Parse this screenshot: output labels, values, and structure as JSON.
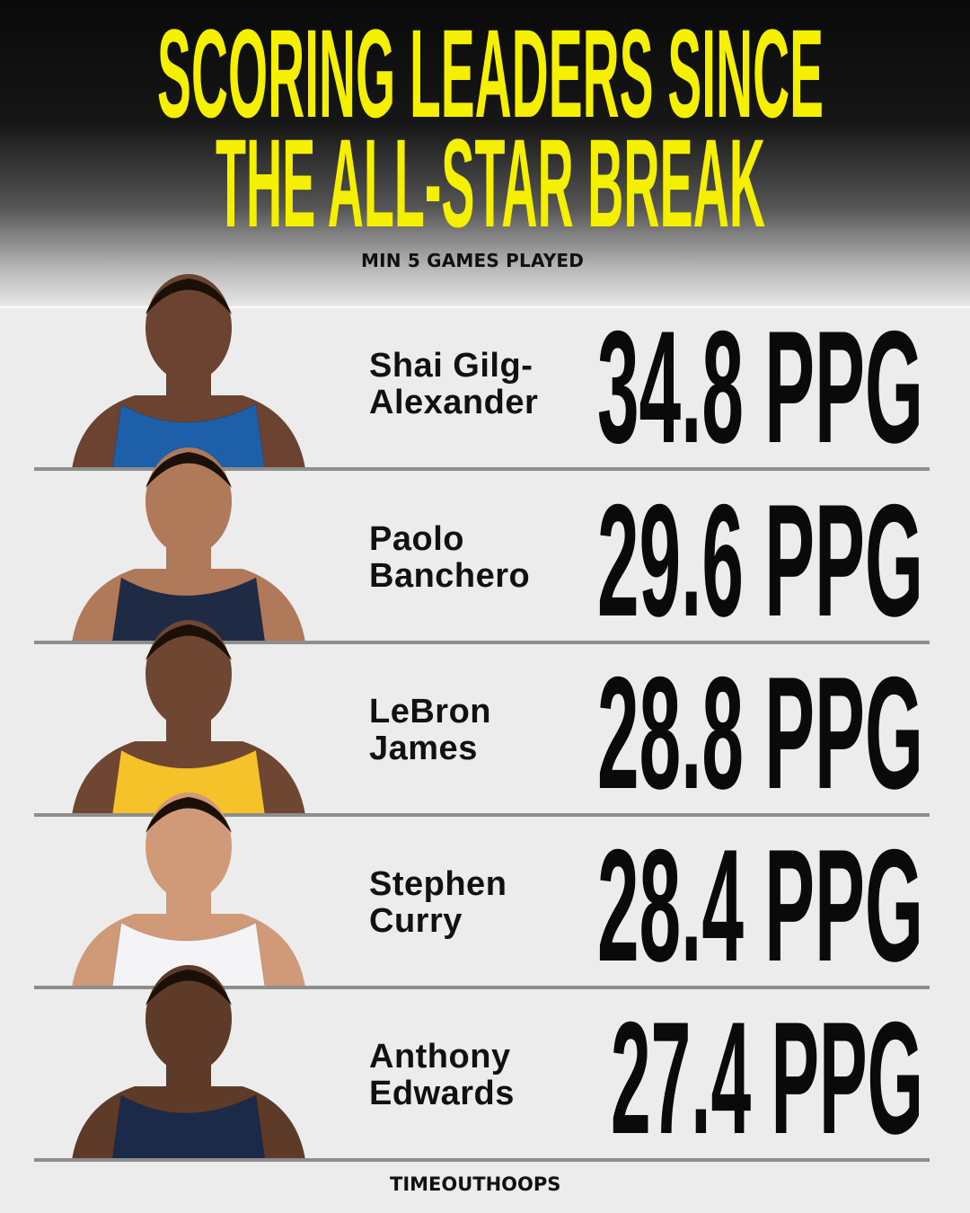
{
  "title": {
    "line1": "SCORING LEADERS SINCE",
    "line2": "THE ALL-STAR BREAK",
    "color": "#f5ef00"
  },
  "subtitle": "MIN 5 GAMES PLAYED",
  "players": [
    {
      "name_line1": "Shai Gilg-",
      "name_line2": "Alexander",
      "stat": "34.8 PPG",
      "jersey_color": "#1d5fa8",
      "skin": "#6b4330"
    },
    {
      "name_line1": "Paolo",
      "name_line2": "Banchero",
      "stat": "29.6 PPG",
      "jersey_color": "#1f2b45",
      "skin": "#b07a5a"
    },
    {
      "name_line1": "LeBron",
      "name_line2": "James",
      "stat": "28.8 PPG",
      "jersey_color": "#f6c22a",
      "skin": "#6e4632"
    },
    {
      "name_line1": "Stephen",
      "name_line2": "Curry",
      "stat": "28.4 PPG",
      "jersey_color": "#f4f4f6",
      "skin": "#d09a78"
    },
    {
      "name_line1": "Anthony",
      "name_line2": "Edwards",
      "stat": "27.4 PPG",
      "jersey_color": "#1c2a4a",
      "skin": "#5e3a28"
    }
  ],
  "footer": "TIMEOUTHOOPS"
}
